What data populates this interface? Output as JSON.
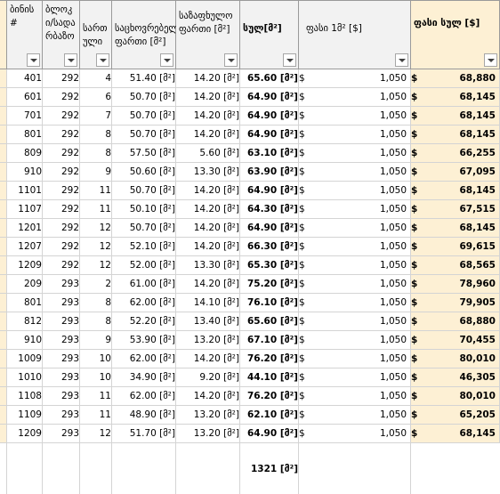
{
  "headers": {
    "apt": "ბინის #",
    "block": "ბლოკი/სადარბაზო",
    "floor": "სართული",
    "living_area": "საცხოვრებელი ფართი [მ²]",
    "balcony": "საზაფხულო ფართი [მ²]",
    "total_area": "სულ[მ²]",
    "price_sqm": "ფასი 1მ² [$]",
    "price_total": "ფასი სულ [$]"
  },
  "currency_symbol": "$",
  "rows": [
    {
      "apt": "401",
      "block": "292",
      "floor": "4",
      "living": "51.40 [მ²]",
      "balcony": "14.20 [მ²]",
      "total": "65.60 [მ²]",
      "price_sqm": "1,050",
      "price_total": "68,880"
    },
    {
      "apt": "601",
      "block": "292",
      "floor": "6",
      "living": "50.70 [მ²]",
      "balcony": "14.20 [მ²]",
      "total": "64.90 [მ²]",
      "price_sqm": "1,050",
      "price_total": "68,145"
    },
    {
      "apt": "701",
      "block": "292",
      "floor": "7",
      "living": "50.70 [მ²]",
      "balcony": "14.20 [მ²]",
      "total": "64.90 [მ²]",
      "price_sqm": "1,050",
      "price_total": "68,145"
    },
    {
      "apt": "801",
      "block": "292",
      "floor": "8",
      "living": "50.70 [მ²]",
      "balcony": "14.20 [მ²]",
      "total": "64.90 [მ²]",
      "price_sqm": "1,050",
      "price_total": "68,145"
    },
    {
      "apt": "809",
      "block": "292",
      "floor": "8",
      "living": "57.50 [მ²]",
      "balcony": "5.60 [მ²]",
      "total": "63.10 [მ²]",
      "price_sqm": "1,050",
      "price_total": "66,255"
    },
    {
      "apt": "910",
      "block": "292",
      "floor": "9",
      "living": "50.60 [მ²]",
      "balcony": "13.30 [მ²]",
      "total": "63.90 [მ²]",
      "price_sqm": "1,050",
      "price_total": "67,095"
    },
    {
      "apt": "1101",
      "block": "292",
      "floor": "11",
      "living": "50.70 [მ²]",
      "balcony": "14.20 [მ²]",
      "total": "64.90 [მ²]",
      "price_sqm": "1,050",
      "price_total": "68,145"
    },
    {
      "apt": "1107",
      "block": "292",
      "floor": "11",
      "living": "50.10 [მ²]",
      "balcony": "14.20 [მ²]",
      "total": "64.30 [მ²]",
      "price_sqm": "1,050",
      "price_total": "67,515"
    },
    {
      "apt": "1201",
      "block": "292",
      "floor": "12",
      "living": "50.70 [მ²]",
      "balcony": "14.20 [მ²]",
      "total": "64.90 [მ²]",
      "price_sqm": "1,050",
      "price_total": "68,145"
    },
    {
      "apt": "1207",
      "block": "292",
      "floor": "12",
      "living": "52.10 [მ²]",
      "balcony": "14.20 [მ²]",
      "total": "66.30 [მ²]",
      "price_sqm": "1,050",
      "price_total": "69,615"
    },
    {
      "apt": "1209",
      "block": "292",
      "floor": "12",
      "living": "52.00 [მ²]",
      "balcony": "13.30 [მ²]",
      "total": "65.30 [მ²]",
      "price_sqm": "1,050",
      "price_total": "68,565"
    },
    {
      "apt": "209",
      "block": "293",
      "floor": "2",
      "living": "61.00 [მ²]",
      "balcony": "14.20 [მ²]",
      "total": "75.20 [მ²]",
      "price_sqm": "1,050",
      "price_total": "78,960"
    },
    {
      "apt": "801",
      "block": "293",
      "floor": "8",
      "living": "62.00 [მ²]",
      "balcony": "14.10 [მ²]",
      "total": "76.10 [მ²]",
      "price_sqm": "1,050",
      "price_total": "79,905"
    },
    {
      "apt": "812",
      "block": "293",
      "floor": "8",
      "living": "52.20 [მ²]",
      "balcony": "13.40 [მ²]",
      "total": "65.60 [მ²]",
      "price_sqm": "1,050",
      "price_total": "68,880"
    },
    {
      "apt": "910",
      "block": "293",
      "floor": "9",
      "living": "53.90 [მ²]",
      "balcony": "13.20 [მ²]",
      "total": "67.10 [მ²]",
      "price_sqm": "1,050",
      "price_total": "70,455"
    },
    {
      "apt": "1009",
      "block": "293",
      "floor": "10",
      "living": "62.00 [მ²]",
      "balcony": "14.20 [მ²]",
      "total": "76.20 [მ²]",
      "price_sqm": "1,050",
      "price_total": "80,010"
    },
    {
      "apt": "1010",
      "block": "293",
      "floor": "10",
      "living": "34.90 [მ²]",
      "balcony": "9.20 [მ²]",
      "total": "44.10 [მ²]",
      "price_sqm": "1,050",
      "price_total": "46,305"
    },
    {
      "apt": "1108",
      "block": "293",
      "floor": "11",
      "living": "62.00 [მ²]",
      "balcony": "14.20 [მ²]",
      "total": "76.20 [მ²]",
      "price_sqm": "1,050",
      "price_total": "80,010"
    },
    {
      "apt": "1109",
      "block": "293",
      "floor": "11",
      "living": "48.90 [მ²]",
      "balcony": "13.20 [მ²]",
      "total": "62.10 [მ²]",
      "price_sqm": "1,050",
      "price_total": "65,205"
    },
    {
      "apt": "1209",
      "block": "293",
      "floor": "12",
      "living": "51.70 [მ²]",
      "balcony": "13.20 [მ²]",
      "total": "64.90 [მ²]",
      "price_sqm": "1,050",
      "price_total": "68,145"
    }
  ],
  "summary": {
    "total_area": "1321 [მ²]"
  },
  "colors": {
    "header_bg": "#f2f2f2",
    "highlight_bg": "#fdf0d4",
    "grid": "#d4d4d4"
  }
}
